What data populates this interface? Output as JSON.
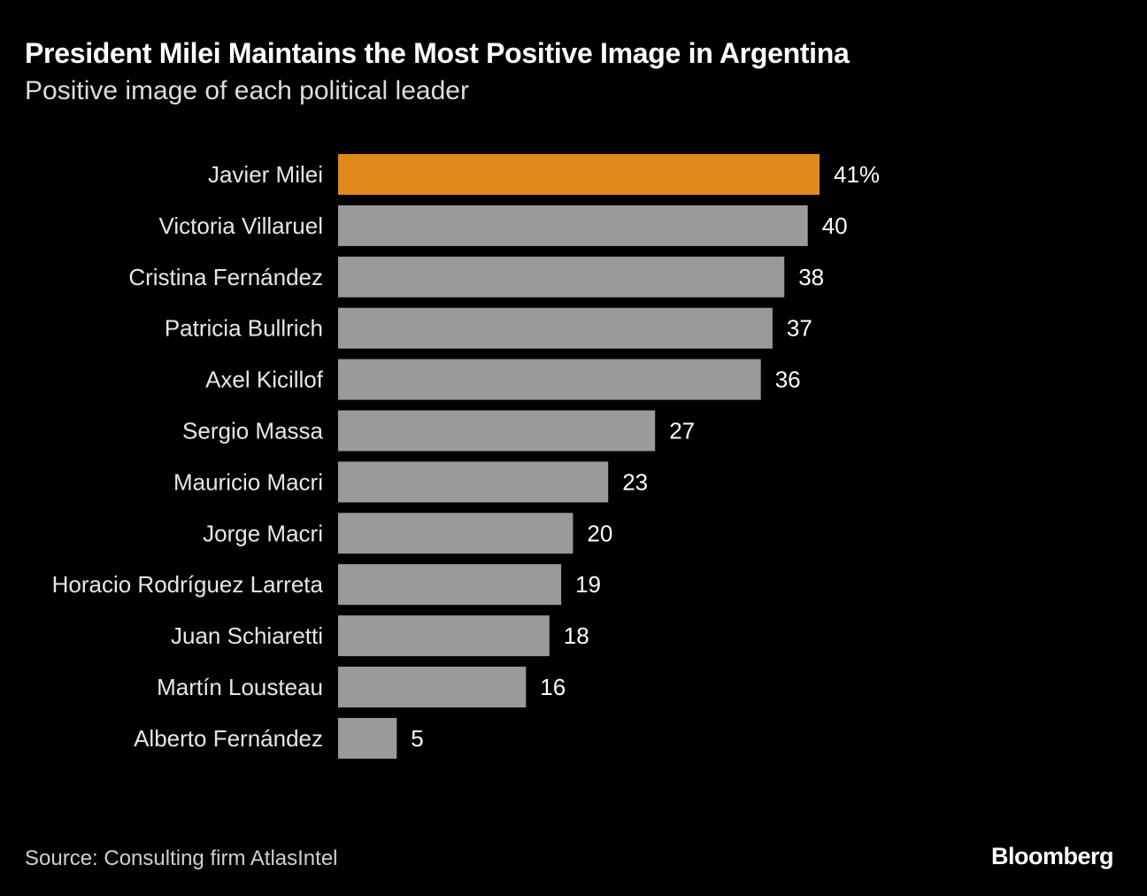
{
  "chart_data": {
    "type": "bar",
    "orientation": "horizontal",
    "title": "President Milei Maintains the Most Positive Image in Argentina",
    "subtitle": "Positive image of each political leader",
    "categories": [
      "Javier Milei",
      "Victoria Villaruel",
      "Cristina Fernández",
      "Patricia Bullrich",
      "Axel Kicillof",
      "Sergio Massa",
      "Mauricio Macri",
      "Jorge Macri",
      "Horacio Rodríguez Larreta",
      "Juan Schiaretti",
      "Martín Lousteau",
      "Alberto Fernández"
    ],
    "values": [
      41,
      40,
      38,
      37,
      36,
      27,
      23,
      20,
      19,
      18,
      16,
      5
    ],
    "value_labels": [
      "41%",
      "40",
      "38",
      "37",
      "36",
      "27",
      "23",
      "20",
      "19",
      "18",
      "16",
      "5"
    ],
    "highlight_index": 0,
    "highlight_color": "#e08a1e",
    "bar_color": "#9a9a9a",
    "xlim": [
      0,
      41
    ],
    "unit": "%"
  },
  "footer": {
    "source": "Source: Consulting firm AtlasIntel",
    "brand": "Bloomberg"
  }
}
